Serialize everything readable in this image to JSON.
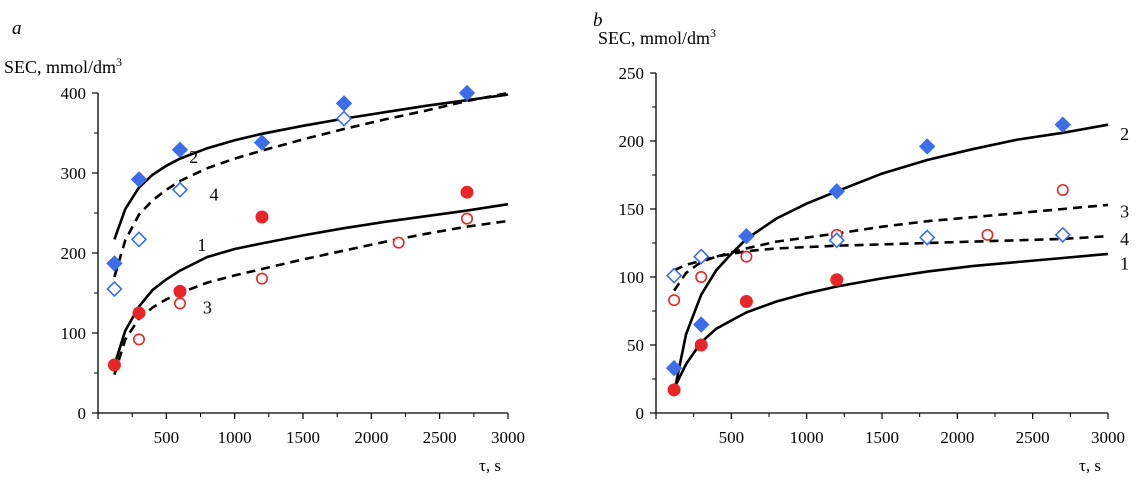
{
  "chart_data": [
    {
      "panel": "a",
      "type": "scatter",
      "ylabel": "SEC, mmol/dm",
      "ylabel_sup": "3",
      "xlabel": "τ, s",
      "xlim": [
        0,
        3000
      ],
      "ylim": [
        0,
        400
      ],
      "xticks": [
        500,
        1000,
        1500,
        2000,
        2500,
        3000
      ],
      "yticks": [
        0,
        100,
        200,
        300,
        400
      ],
      "grid": false,
      "series": [
        {
          "name": "",
          "marker": "circle-filled",
          "color": "#e8262a",
          "x": [
            120,
            300,
            600,
            1200,
            2700
          ],
          "y": [
            60,
            125,
            152,
            245,
            276
          ]
        },
        {
          "name": "",
          "marker": "circle-open",
          "color": "#e8262a",
          "x": [
            300,
            600,
            1200,
            2200,
            2700
          ],
          "y": [
            92,
            137,
            168,
            213,
            243
          ]
        },
        {
          "name": "",
          "marker": "diamond-filled",
          "color": "#3d6de8",
          "x": [
            120,
            300,
            600,
            1200,
            1800,
            2700
          ],
          "y": [
            187,
            292,
            329,
            338,
            387,
            400
          ]
        },
        {
          "name": "",
          "marker": "diamond-open",
          "color": "#3d6de8",
          "x": [
            120,
            300,
            600,
            1800
          ],
          "y": [
            155,
            217,
            279,
            368
          ]
        }
      ],
      "curves": [
        {
          "label": "1",
          "style": "solid",
          "x": [
            120,
            200,
            300,
            400,
            500,
            600,
            800,
            1000,
            1200,
            1500,
            1800,
            2100,
            2400,
            2700,
            3000
          ],
          "y": [
            60,
            103,
            133,
            154,
            167,
            178,
            195,
            205,
            212,
            222,
            231,
            239,
            246,
            253,
            261
          ]
        },
        {
          "label": "3",
          "style": "dashed",
          "x": [
            120,
            200,
            300,
            400,
            500,
            600,
            800,
            1000,
            1200,
            1500,
            1800,
            2100,
            2400,
            2700,
            3000
          ],
          "y": [
            48,
            92,
            118,
            132,
            142,
            150,
            163,
            172,
            180,
            192,
            203,
            214,
            224,
            233,
            240
          ]
        },
        {
          "label": "2",
          "style": "solid",
          "x": [
            120,
            200,
            300,
            400,
            500,
            600,
            800,
            1000,
            1200,
            1500,
            1800,
            2100,
            2400,
            2700,
            3000
          ],
          "y": [
            217,
            255,
            282,
            298,
            309,
            318,
            331,
            341,
            349,
            359,
            368,
            376,
            384,
            391,
            398
          ]
        },
        {
          "label": "4",
          "style": "dashed",
          "x": [
            120,
            200,
            300,
            400,
            500,
            600,
            800,
            1000,
            1200,
            1500,
            1800,
            2100,
            2400,
            2700,
            3000
          ],
          "y": [
            170,
            216,
            248,
            266,
            279,
            290,
            306,
            318,
            328,
            342,
            355,
            367,
            378,
            390,
            400
          ]
        }
      ],
      "curve_labels": [
        {
          "text": "2",
          "x": 700,
          "y": 320
        },
        {
          "text": "4",
          "x": 850,
          "y": 273
        },
        {
          "text": "1",
          "x": 760,
          "y": 210
        },
        {
          "text": "3",
          "x": 800,
          "y": 132
        }
      ]
    },
    {
      "panel": "b",
      "type": "scatter",
      "ylabel": "SEC, mmol/dm",
      "ylabel_sup": "3",
      "xlabel": "τ, s",
      "xlim": [
        0,
        3000
      ],
      "ylim": [
        0,
        250
      ],
      "xticks": [
        500,
        1000,
        1500,
        2000,
        2500,
        3000
      ],
      "yticks": [
        0,
        50,
        100,
        150,
        200,
        250
      ],
      "grid": false,
      "series": [
        {
          "name": "",
          "marker": "circle-filled",
          "color": "#e8262a",
          "x": [
            120,
            300,
            600,
            1200
          ],
          "y": [
            17,
            50,
            82,
            98
          ]
        },
        {
          "name": "",
          "marker": "circle-open",
          "color": "#e8262a",
          "x": [
            120,
            300,
            600,
            1200,
            2200,
            2700
          ],
          "y": [
            83,
            100,
            115,
            131,
            131,
            164
          ]
        },
        {
          "name": "",
          "marker": "diamond-filled",
          "color": "#3d6de8",
          "x": [
            120,
            300,
            600,
            1200,
            1800,
            2700
          ],
          "y": [
            33,
            65,
            130,
            163,
            196,
            212
          ]
        },
        {
          "name": "",
          "marker": "diamond-open",
          "color": "#3d6de8",
          "x": [
            120,
            300,
            1200,
            1800,
            2700
          ],
          "y": [
            101,
            115,
            127,
            129,
            131
          ]
        }
      ],
      "curves": [
        {
          "label": "2",
          "style": "solid",
          "x": [
            120,
            200,
            300,
            400,
            500,
            600,
            800,
            1000,
            1200,
            1500,
            1800,
            2100,
            2400,
            2700,
            3000
          ],
          "y": [
            15,
            58,
            87,
            105,
            117,
            128,
            143,
            154,
            163,
            176,
            186,
            194,
            201,
            206,
            212
          ]
        },
        {
          "label": "3",
          "style": "dashed",
          "x": [
            120,
            200,
            300,
            400,
            500,
            600,
            800,
            1000,
            1200,
            1500,
            1800,
            2100,
            2400,
            2700,
            3000
          ],
          "y": [
            105,
            109,
            112,
            115,
            118,
            121,
            126,
            129,
            132,
            137,
            141,
            144,
            147,
            150,
            153
          ]
        },
        {
          "label": "4",
          "style": "dashed",
          "x": [
            120,
            200,
            300,
            400,
            500,
            600,
            800,
            1000,
            1200,
            1500,
            1800,
            2100,
            2400,
            2700,
            3000
          ],
          "y": [
            90,
            103,
            111,
            115,
            117,
            119,
            121,
            122,
            123,
            124,
            125,
            126,
            127,
            128,
            130
          ]
        },
        {
          "label": "1",
          "style": "solid",
          "x": [
            120,
            200,
            300,
            400,
            500,
            600,
            800,
            1000,
            1200,
            1500,
            1800,
            2100,
            2400,
            2700,
            3000
          ],
          "y": [
            18,
            36,
            52,
            62,
            68,
            74,
            82,
            88,
            93,
            99,
            104,
            108,
            111,
            114,
            117
          ]
        }
      ],
      "curve_labels": [
        {
          "text": "2",
          "x": 3110,
          "y": 205
        },
        {
          "text": "3",
          "x": 3110,
          "y": 148
        },
        {
          "text": "4",
          "x": 3110,
          "y": 128
        },
        {
          "text": "1",
          "x": 3110,
          "y": 110
        }
      ]
    }
  ]
}
